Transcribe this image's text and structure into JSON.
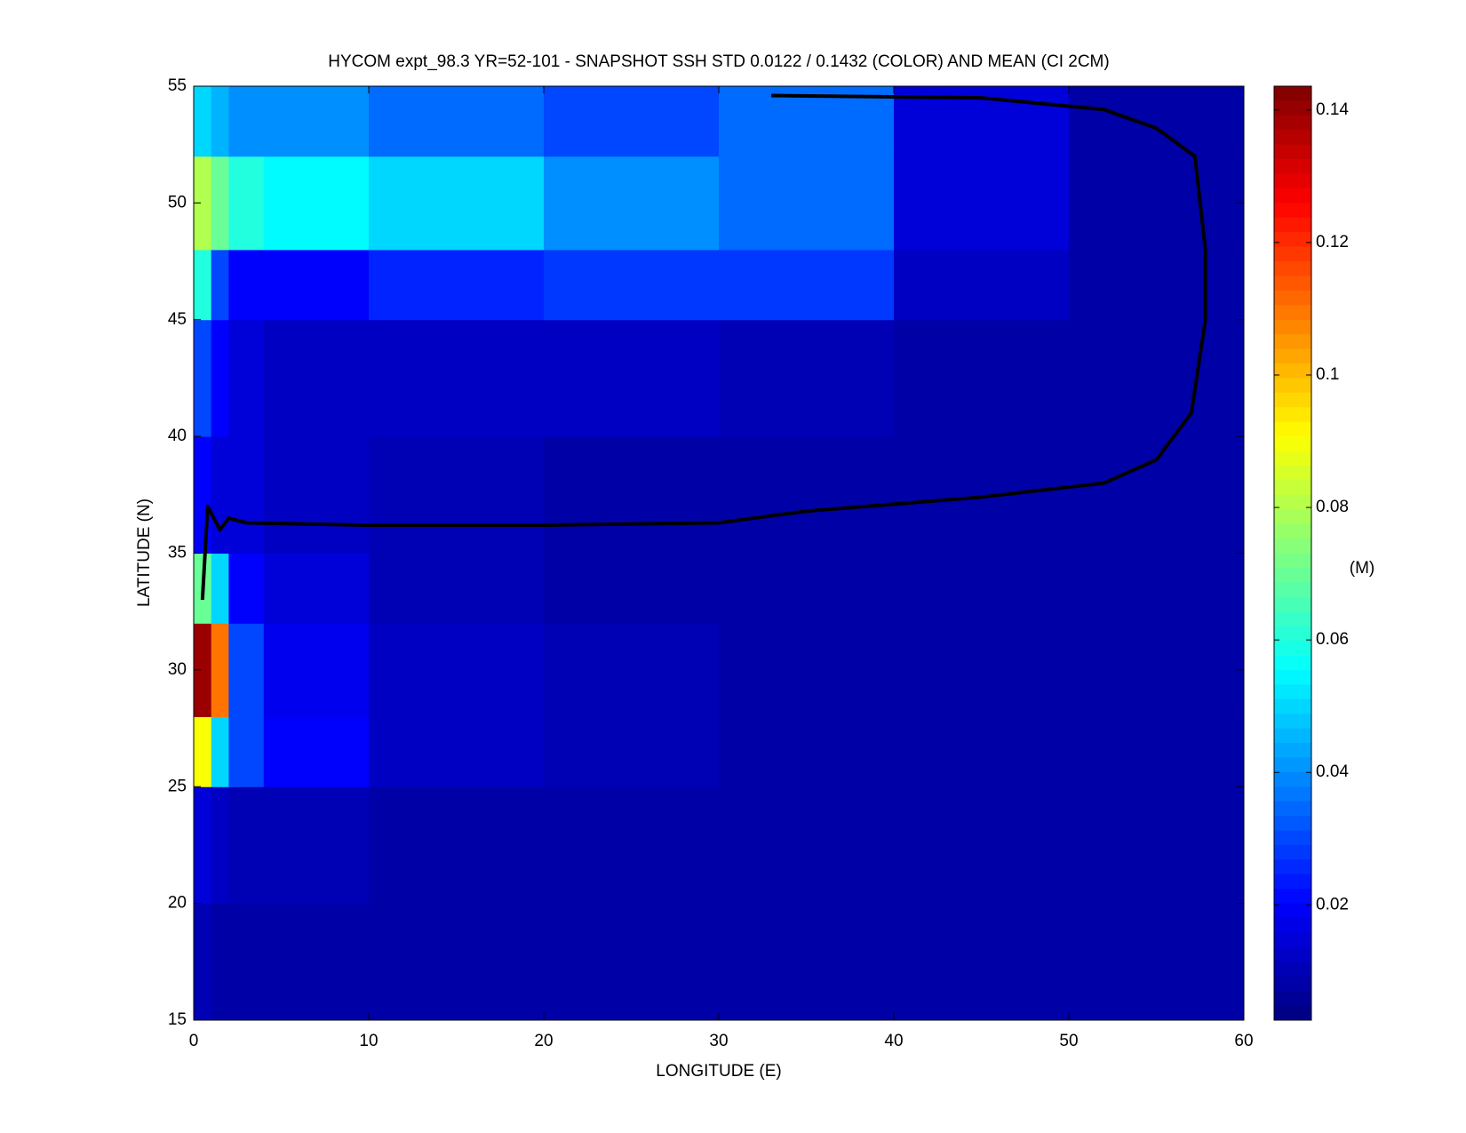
{
  "chart_data": {
    "type": "heatmap",
    "title": "HYCOM expt_98.3 YR=52-101 - SNAPSHOT SSH STD 0.0122 / 0.1432 (COLOR) AND MEAN (CI 2CM)",
    "x_label": "LONGITUDE (E)",
    "y_label": "LATITUDE (N)",
    "colorbar_label": "(M)",
    "x_edges": [
      0,
      1,
      2,
      4,
      10,
      20,
      30,
      40,
      50,
      60
    ],
    "y_edges": [
      15,
      20,
      25,
      28,
      32,
      35,
      40,
      45,
      48,
      52,
      55
    ],
    "z": [
      [
        0.01,
        0.008,
        0.008,
        0.008,
        0.008,
        0.008,
        0.008,
        0.008,
        0.008
      ],
      [
        0.015,
        0.012,
        0.01,
        0.01,
        0.008,
        0.008,
        0.008,
        0.008,
        0.008
      ],
      [
        0.09,
        0.05,
        0.03,
        0.02,
        0.012,
        0.01,
        0.008,
        0.008,
        0.008
      ],
      [
        0.14,
        0.11,
        0.03,
        0.018,
        0.012,
        0.01,
        0.008,
        0.008,
        0.008
      ],
      [
        0.07,
        0.05,
        0.02,
        0.015,
        0.01,
        0.008,
        0.008,
        0.008,
        0.008
      ],
      [
        0.02,
        0.015,
        0.015,
        0.012,
        0.01,
        0.008,
        0.008,
        0.008,
        0.008
      ],
      [
        0.03,
        0.02,
        0.015,
        0.012,
        0.012,
        0.012,
        0.01,
        0.008,
        0.008
      ],
      [
        0.06,
        0.03,
        0.02,
        0.02,
        0.025,
        0.028,
        0.028,
        0.012,
        0.008
      ],
      [
        0.08,
        0.07,
        0.06,
        0.055,
        0.05,
        0.04,
        0.035,
        0.015,
        0.008
      ],
      [
        0.05,
        0.045,
        0.04,
        0.04,
        0.035,
        0.03,
        0.035,
        0.015,
        0.008
      ]
    ],
    "zero_contour": {
      "x": [
        0.5,
        0.8,
        1.5,
        2,
        3,
        10,
        20,
        30,
        35,
        45,
        52,
        55,
        57,
        57.8,
        57.8,
        57.2,
        55,
        52,
        45,
        33
      ],
      "y": [
        33,
        37,
        36,
        36.5,
        36.3,
        36.2,
        36.2,
        36.3,
        36.8,
        37.4,
        38,
        39,
        41,
        45,
        48,
        52,
        53.2,
        54,
        54.5,
        54.6
      ]
    },
    "xlim": [
      0,
      60
    ],
    "xticks": [
      0,
      10,
      20,
      30,
      40,
      50,
      60
    ],
    "ylim": [
      15,
      55
    ],
    "yticks": [
      15,
      20,
      25,
      30,
      35,
      40,
      45,
      50,
      55
    ],
    "clim": [
      0.0026,
      0.1436
    ],
    "cticks": [
      0.02,
      0.04,
      0.06,
      0.08,
      0.1,
      0.12,
      0.14
    ],
    "colormap": "jet"
  }
}
